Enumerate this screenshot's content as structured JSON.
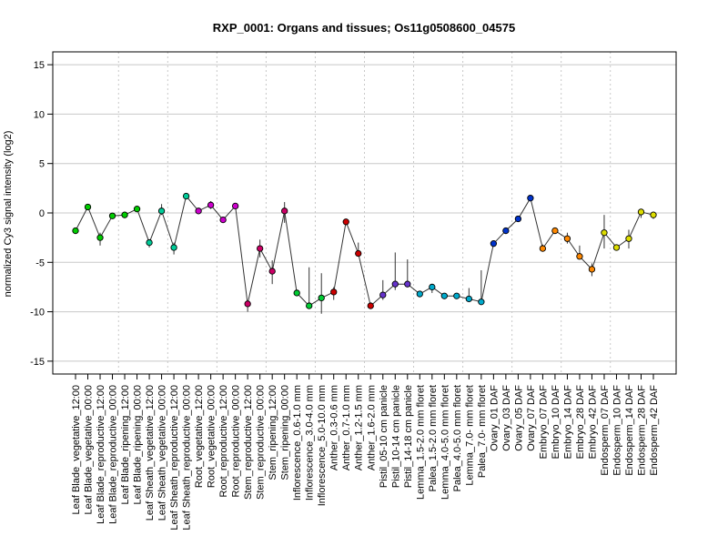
{
  "chart_data": {
    "type": "line",
    "title": "RXP_0001: Organs and tissues; Os11g0508600_04575",
    "ylabel": "normalized Cy3 signal intensity (log2)",
    "xlabel": "",
    "ylim": [
      -16.3,
      16.3
    ],
    "yticks": [
      -15,
      -10,
      -5,
      0,
      5,
      10,
      15
    ],
    "grid": true,
    "categories": [
      "Leaf Blade_vegetative_12:00",
      "Leaf Blade_vegetative_00:00",
      "Leaf Blade_reproductive_12:00",
      "Leaf Blade_reproductive_00:00",
      "Leaf Blade_ripening_12:00",
      "Leaf Blade_ripening_00:00",
      "Leaf Sheath_vegetative_12:00",
      "Leaf Sheath_vegetative_00:00",
      "Leaf Sheath_reproductive_12:00",
      "Leaf Sheath_reproductive_00:00",
      "Root_vegetative_12:00",
      "Root_vegetative_00:00",
      "Root_reproductive_12:00",
      "Root_reproductive_00:00",
      "Stem_reproductive_12:00",
      "Stem_reproductive_00:00",
      "Stem_ripening_12:00",
      "Stem_ripening_00:00",
      "Inflorescence_0.6-1.0 mm",
      "Inflorescence_3.0-4.0 mm",
      "Inflorescence_5.0-10.0 mm",
      "Anther_0.3-0.6 mm",
      "Anther_0.7-1.0 mm",
      "Anther_1.2-1.5 mm",
      "Anther_1.6-2.0 mm",
      "Pistil_05-10 cm panicle",
      "Pistil_10-14 cm panicle",
      "Pistil_14-18 cm panicle",
      "Lemma_1.5-2.0 mm floret",
      "Palea_1.5-2.0 mm floret",
      "Lemma_4.0-5.0 mm floret",
      "Palea_4.0-5.0 mm floret",
      "Lemma_7.0- mm floret",
      "Palea_7.0- mm floret",
      "Ovary_01 DAF",
      "Ovary_03 DAF",
      "Ovary_05 DAF",
      "Ovary_07 DAF",
      "Embryo_07 DAF",
      "Embryo_10 DAF",
      "Embryo_14 DAF",
      "Embryo_28 DAF",
      "Embryo_42 DAF",
      "Endosperm_07 DAF",
      "Endosperm_10 DAF",
      "Endosperm_14 DAF",
      "Endosperm_28 DAF",
      "Endosperm_42 DAF"
    ],
    "values": [
      -1.8,
      0.6,
      -2.5,
      -0.3,
      -0.2,
      0.4,
      -3.0,
      0.2,
      -3.5,
      1.7,
      0.2,
      0.8,
      -0.7,
      0.7,
      -9.2,
      -3.6,
      -5.9,
      0.2,
      -8.1,
      -9.4,
      -8.6,
      -8.0,
      -0.9,
      -4.1,
      -9.4,
      -8.3,
      -7.2,
      -7.2,
      -8.2,
      -7.5,
      -8.4,
      -8.4,
      -8.7,
      -9.0,
      -3.1,
      -1.8,
      -0.6,
      1.5,
      -3.6,
      -1.8,
      -2.6,
      -4.4,
      -5.7,
      -2.0,
      -3.5,
      -2.6,
      0.1,
      -0.2
    ],
    "error_low": [
      -1.8,
      0.6,
      -3.3,
      -0.3,
      -0.2,
      0.4,
      -3.5,
      -0.2,
      -4.2,
      1.7,
      0.0,
      0.4,
      -0.7,
      0.5,
      -10.0,
      -4.5,
      -7.2,
      -1.0,
      -8.1,
      -9.5,
      -10.2,
      -8.8,
      -1.1,
      -4.3,
      -9.4,
      -8.8,
      -7.8,
      -7.5,
      -8.2,
      -8.1,
      -8.6,
      -8.6,
      -9.0,
      -9.3,
      -3.4,
      -2.0,
      -0.8,
      1.3,
      -3.7,
      -1.9,
      -3.1,
      -4.6,
      -6.4,
      -3.6,
      -3.6,
      -3.6,
      -0.5,
      -0.6
    ],
    "error_high": [
      -1.8,
      0.6,
      -2.0,
      -0.3,
      -0.2,
      0.4,
      -2.7,
      0.9,
      -3.0,
      1.7,
      0.4,
      1.2,
      -0.7,
      0.9,
      -8.9,
      -2.7,
      -4.8,
      1.1,
      -8.1,
      -5.5,
      -6.1,
      -7.5,
      -0.7,
      -3.0,
      -9.4,
      -6.8,
      -4.0,
      -4.7,
      -8.2,
      -7.2,
      -8.2,
      -8.2,
      -7.6,
      -5.8,
      -2.8,
      -1.6,
      -0.4,
      1.7,
      -3.2,
      -1.7,
      -2.0,
      -3.3,
      -5.1,
      -0.2,
      -3.4,
      -1.7,
      0.3,
      0.1
    ],
    "colors": [
      "#00cc00",
      "#00cc00",
      "#00cc00",
      "#00cc00",
      "#00cc00",
      "#00cc00",
      "#00cc99",
      "#00cc99",
      "#00cc99",
      "#00cc99",
      "#cc00cc",
      "#cc00cc",
      "#cc00cc",
      "#cc00cc",
      "#cc0066",
      "#cc0066",
      "#cc0066",
      "#cc0066",
      "#00cc33",
      "#00cc33",
      "#00cc33",
      "#cc0000",
      "#cc0000",
      "#cc0000",
      "#cc0000",
      "#6633cc",
      "#6633cc",
      "#6633cc",
      "#00aacc",
      "#00aacc",
      "#00aacc",
      "#00aacc",
      "#00aacc",
      "#00aacc",
      "#0033cc",
      "#0033cc",
      "#0033cc",
      "#0033cc",
      "#ff8800",
      "#ff8800",
      "#ff8800",
      "#ff8800",
      "#ff8800",
      "#dddd00",
      "#dddd00",
      "#dddd00",
      "#dddd00",
      "#dddd00"
    ],
    "line_color": "#333333",
    "marker_stroke": "#000000"
  }
}
